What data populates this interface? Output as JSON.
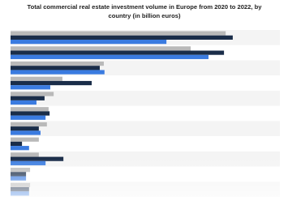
{
  "chart_data": {
    "type": "hbar",
    "title_lines": [
      "Total commercial real estate investment volume in Europe from 2020 to 2022, by",
      "country (in billion euros)"
    ],
    "categories": [
      null,
      null,
      null,
      null,
      null,
      null,
      null,
      null,
      null,
      null,
      null
    ],
    "series": [
      {
        "color": "#b9b9b9",
        "values": [
          63.9,
          53.5,
          27.7,
          15.4,
          12.8,
          11.3,
          10.8,
          8.4,
          8.4,
          5.8,
          5.8
        ]
      },
      {
        "color": "#1a2d49",
        "values": [
          66.0,
          63.4,
          26.5,
          24.1,
          10.1,
          11.6,
          8.4,
          3.4,
          15.7,
          4.6,
          5.5
        ]
      },
      {
        "color": "#3a7be0",
        "values": [
          46.3,
          58.8,
          27.9,
          11.8,
          7.7,
          10.4,
          8.9,
          5.5,
          10.4,
          4.6,
          5.5
        ]
      }
    ],
    "xlim": [
      0,
      80
    ]
  }
}
